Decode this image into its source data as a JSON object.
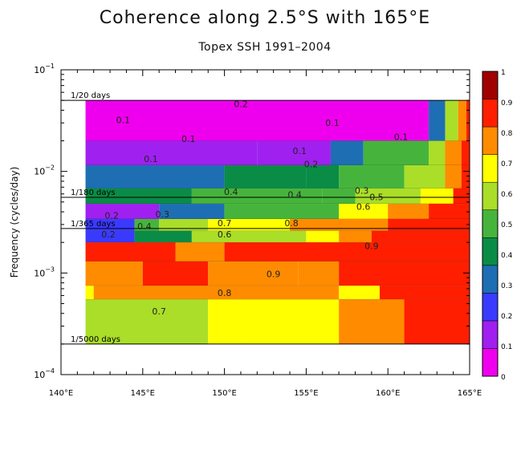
{
  "chart_data": {
    "type": "heatmap",
    "title": "Coherence along 2.5°S with 165°E",
    "subtitle": "Topex SSH 1991–2004",
    "ylabel": "Frequency (cycles/day)",
    "xlabel": "",
    "x_range": [
      140,
      165
    ],
    "y_range": [
      0.0001,
      0.1
    ],
    "y_scale": "log",
    "x_ticks": [
      "140°E",
      "145°E",
      "150°E",
      "155°E",
      "160°E",
      "165°E"
    ],
    "x_tick_values": [
      140,
      145,
      150,
      155,
      160,
      165
    ],
    "y_ticks": [
      {
        "value": 0.1,
        "base": "10",
        "exp": "−1"
      },
      {
        "value": 0.01,
        "base": "10",
        "exp": "−2"
      },
      {
        "value": 0.001,
        "base": "10",
        "exp": "−3"
      },
      {
        "value": 0.0001,
        "base": "10",
        "exp": "−4"
      }
    ],
    "reference_lines": [
      {
        "freq": 0.05,
        "label": "1/20 days"
      },
      {
        "freq": 0.00556,
        "label": "1/180 days"
      },
      {
        "freq": 0.00274,
        "label": "1/365 days"
      },
      {
        "freq": 0.0002,
        "label": "1/5000 days"
      }
    ],
    "colorbar": {
      "levels": [
        0,
        0.1,
        0.2,
        0.3,
        0.4,
        0.5,
        0.6,
        0.7,
        0.8,
        0.9,
        1
      ],
      "tick_labels": [
        "0",
        "0.1",
        "0.2",
        "0.3",
        "0.4",
        "0.5",
        "0.6",
        "0.7",
        "0.8",
        "0.9",
        "1"
      ],
      "colors": [
        "#ee00ee",
        "#a020f0",
        "#3a3aff",
        "#1e6eb4",
        "#0a8c46",
        "#46b43c",
        "#aade28",
        "#ffff00",
        "#ff8c00",
        "#ff1e00",
        "#a00000"
      ]
    },
    "data_extent": {
      "x": [
        141.5,
        165
      ],
      "y": [
        0.0002,
        0.05
      ]
    },
    "bands": [
      {
        "f_hi": 0.05,
        "f_lo": 0.02,
        "segments": [
          [
            141.5,
            0.05
          ],
          [
            162.5,
            0.35
          ],
          [
            163.5,
            0.65
          ],
          [
            164.3,
            0.85
          ],
          [
            164.8,
            0.95
          ]
        ]
      },
      {
        "f_hi": 0.02,
        "f_lo": 0.0115,
        "segments": [
          [
            141.5,
            0.15
          ],
          [
            152,
            0.12
          ],
          [
            156.5,
            0.35
          ],
          [
            158.5,
            0.55
          ],
          [
            162.5,
            0.65
          ],
          [
            163.5,
            0.85
          ],
          [
            164.5,
            0.95
          ]
        ]
      },
      {
        "f_hi": 0.0115,
        "f_lo": 0.0068,
        "segments": [
          [
            141.5,
            0.3
          ],
          [
            150,
            0.45
          ],
          [
            155,
            0.45
          ],
          [
            157,
            0.55
          ],
          [
            161,
            0.65
          ],
          [
            163.5,
            0.85
          ],
          [
            164.5,
            0.95
          ]
        ]
      },
      {
        "f_hi": 0.0068,
        "f_lo": 0.0048,
        "segments": [
          [
            141.5,
            0.45
          ],
          [
            148,
            0.55
          ],
          [
            156,
            0.55
          ],
          [
            158,
            0.65
          ],
          [
            162,
            0.75
          ],
          [
            164,
            0.95
          ]
        ]
      },
      {
        "f_hi": 0.0048,
        "f_lo": 0.0034,
        "segments": [
          [
            141.5,
            0.15
          ],
          [
            146,
            0.35
          ],
          [
            150,
            0.55
          ],
          [
            157,
            0.75
          ],
          [
            160,
            0.85
          ],
          [
            162.5,
            0.95
          ]
        ]
      },
      {
        "f_hi": 0.0034,
        "f_lo": 0.0026,
        "segments": [
          [
            141.5,
            0.25
          ],
          [
            144.5,
            0.55
          ],
          [
            146,
            0.65
          ],
          [
            149,
            0.75
          ],
          [
            154,
            0.85
          ],
          [
            160,
            0.95
          ]
        ]
      },
      {
        "f_hi": 0.0026,
        "f_lo": 0.002,
        "segments": [
          [
            141.5,
            0.25
          ],
          [
            144.5,
            0.45
          ],
          [
            148,
            0.65
          ],
          [
            155,
            0.75
          ],
          [
            157,
            0.85
          ],
          [
            159,
            0.95
          ]
        ]
      },
      {
        "f_hi": 0.002,
        "f_lo": 0.0013,
        "segments": [
          [
            141.5,
            0.95
          ],
          [
            147,
            0.85
          ],
          [
            150,
            0.95
          ]
        ]
      },
      {
        "f_hi": 0.0013,
        "f_lo": 0.00075,
        "segments": [
          [
            141.5,
            0.85
          ],
          [
            145,
            0.95
          ],
          [
            149,
            0.85
          ],
          [
            154.5,
            0.85
          ],
          [
            157,
            0.95
          ]
        ]
      },
      {
        "f_hi": 0.00075,
        "f_lo": 0.00055,
        "segments": [
          [
            141.5,
            0.75
          ],
          [
            142,
            0.85
          ],
          [
            157,
            0.75
          ],
          [
            159.5,
            0.95
          ]
        ]
      },
      {
        "f_hi": 0.00055,
        "f_lo": 0.0002,
        "segments": [
          [
            141.5,
            0.65
          ],
          [
            149,
            0.75
          ],
          [
            151,
            0.75
          ],
          [
            157,
            0.85
          ],
          [
            161,
            0.95
          ]
        ]
      }
    ],
    "contour_labels": [
      {
        "x": 151.0,
        "f": 0.046,
        "text": "0.2"
      },
      {
        "x": 143.8,
        "f": 0.032,
        "text": "0.1"
      },
      {
        "x": 156.6,
        "f": 0.03,
        "text": "0.1"
      },
      {
        "x": 147.8,
        "f": 0.021,
        "text": "0.1"
      },
      {
        "x": 160.8,
        "f": 0.022,
        "text": "0.1"
      },
      {
        "x": 154.6,
        "f": 0.016,
        "text": "0.1"
      },
      {
        "x": 145.5,
        "f": 0.0133,
        "text": "0.1"
      },
      {
        "x": 155.3,
        "f": 0.0118,
        "text": "0.2"
      },
      {
        "x": 150.4,
        "f": 0.0063,
        "text": "0.4"
      },
      {
        "x": 154.3,
        "f": 0.0059,
        "text": "0.4"
      },
      {
        "x": 158.4,
        "f": 0.0065,
        "text": "0.3"
      },
      {
        "x": 159.3,
        "f": 0.0056,
        "text": "0.5"
      },
      {
        "x": 158.5,
        "f": 0.0045,
        "text": "0.6"
      },
      {
        "x": 143.1,
        "f": 0.0037,
        "text": "0.2"
      },
      {
        "x": 146.2,
        "f": 0.0038,
        "text": "0.3"
      },
      {
        "x": 145.1,
        "f": 0.0029,
        "text": "0.4"
      },
      {
        "x": 142.9,
        "f": 0.0024,
        "text": "0.2"
      },
      {
        "x": 150.0,
        "f": 0.0031,
        "text": "0.7"
      },
      {
        "x": 154.1,
        "f": 0.0031,
        "text": "0.8"
      },
      {
        "x": 150.0,
        "f": 0.0024,
        "text": "0.6"
      },
      {
        "x": 159.0,
        "f": 0.00185,
        "text": "0.9"
      },
      {
        "x": 153.0,
        "f": 0.00098,
        "text": "0.9"
      },
      {
        "x": 150.0,
        "f": 0.00064,
        "text": "0.8"
      },
      {
        "x": 146.0,
        "f": 0.00042,
        "text": "0.7"
      }
    ]
  }
}
